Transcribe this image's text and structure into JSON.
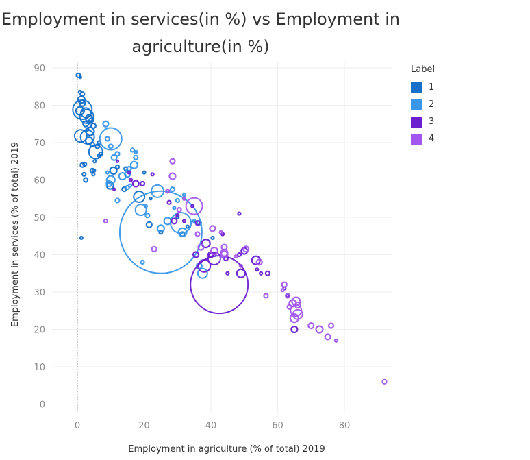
{
  "chart_data": {
    "type": "scatter",
    "title": "Employment in services(in %) vs Employment in agriculture(in %)",
    "xlabel": "Employment in agriculture (% of total) 2019",
    "ylabel": "Employment in services (% of total) 2019",
    "xlim": [
      -8,
      100
    ],
    "ylim": [
      -2,
      92
    ],
    "xticks": [
      0,
      20,
      40,
      60,
      80
    ],
    "yticks": [
      0,
      10,
      20,
      30,
      40,
      50,
      60,
      70,
      80,
      90
    ],
    "grid": true,
    "legend": {
      "title": "Label",
      "placement": "right"
    },
    "series": [
      {
        "name": "1",
        "color": "#1670c8",
        "points": [
          [
            0.3,
            88,
            3
          ],
          [
            0.9,
            87.5,
            1.5
          ],
          [
            0.8,
            83.5,
            2
          ],
          [
            1.5,
            83,
            3
          ],
          [
            1.2,
            81.5,
            5
          ],
          [
            1.5,
            80.5,
            4
          ],
          [
            1.5,
            78.8,
            14
          ],
          [
            0.8,
            78.5,
            6
          ],
          [
            2.5,
            78,
            7
          ],
          [
            2.8,
            77,
            10
          ],
          [
            3.5,
            76.5,
            5
          ],
          [
            4.2,
            76,
            3
          ],
          [
            2.5,
            75,
            4
          ],
          [
            3.5,
            75.5,
            2.5
          ],
          [
            4.8,
            74.5,
            3.5
          ],
          [
            3,
            73.5,
            2
          ],
          [
            3.8,
            73,
            6
          ],
          [
            1,
            71.8,
            9
          ],
          [
            3,
            71.5,
            10
          ],
          [
            3.5,
            70.5,
            5
          ],
          [
            4.5,
            69.5,
            3
          ],
          [
            6,
            69,
            3
          ],
          [
            6.5,
            70,
            2.5
          ],
          [
            5.5,
            67.5,
            10
          ],
          [
            6.5,
            66.5,
            2
          ],
          [
            7,
            67,
            2.5
          ],
          [
            5.2,
            65,
            2
          ],
          [
            1.5,
            64,
            3
          ],
          [
            2.2,
            64.2,
            2.5
          ],
          [
            4.5,
            62.5,
            3
          ],
          [
            5,
            62.5,
            2
          ],
          [
            4.8,
            61.5,
            2
          ],
          [
            2,
            61.5,
            2.5
          ],
          [
            2.5,
            60,
            3
          ],
          [
            9.8,
            58.5,
            5
          ],
          [
            10.8,
            62.5,
            5
          ],
          [
            12,
            63.5,
            2.5
          ],
          [
            14.5,
            63,
            2.5
          ],
          [
            14,
            57.5,
            3
          ],
          [
            18.5,
            55.5,
            8
          ],
          [
            20,
            62,
            2
          ],
          [
            22,
            55,
            1.5
          ],
          [
            21.5,
            48,
            4
          ],
          [
            25,
            46,
            2.5
          ],
          [
            30,
            50,
            2
          ],
          [
            31.5,
            45.5,
            3
          ],
          [
            33,
            47.5,
            2
          ],
          [
            40.5,
            44.5,
            2
          ],
          [
            1.2,
            44.5,
            2
          ]
        ]
      },
      {
        "name": "2",
        "color": "#3a96e8",
        "points": [
          [
            8.5,
            75,
            4
          ],
          [
            10,
            71,
            16
          ],
          [
            9,
            71,
            3
          ],
          [
            10,
            69,
            3
          ],
          [
            11,
            66,
            4
          ],
          [
            12,
            67,
            3
          ],
          [
            10,
            60,
            6
          ],
          [
            9.5,
            59,
            4
          ],
          [
            9,
            62,
            2
          ],
          [
            13.5,
            61,
            5
          ],
          [
            15,
            61.5,
            4
          ],
          [
            15.5,
            63,
            3
          ],
          [
            17,
            64,
            5
          ],
          [
            17.5,
            66,
            3
          ],
          [
            16.5,
            68,
            2.5
          ],
          [
            17.5,
            67.5,
            2
          ],
          [
            15.8,
            58.5,
            2
          ],
          [
            12,
            54.5,
            3
          ],
          [
            19,
            52,
            8
          ],
          [
            20.5,
            53,
            2
          ],
          [
            21,
            50.5,
            3
          ],
          [
            24,
            57,
            9
          ],
          [
            25,
            47,
            5
          ],
          [
            25,
            46,
            60
          ],
          [
            27,
            49,
            5
          ],
          [
            28.5,
            57.5,
            3
          ],
          [
            29,
            52.5,
            2
          ],
          [
            30,
            54.5,
            2.5
          ],
          [
            31,
            48.5,
            15
          ],
          [
            31.5,
            46,
            6
          ],
          [
            32,
            56,
            2
          ],
          [
            35,
            49,
            2
          ],
          [
            36.5,
            48.5,
            3
          ],
          [
            36.5,
            37,
            4
          ],
          [
            37.5,
            35,
            7
          ],
          [
            19.5,
            38,
            2.5
          ],
          [
            15,
            58,
            2.5
          ]
        ]
      },
      {
        "name": "3",
        "color": "#6a1fd0",
        "points": [
          [
            15.5,
            62,
            2
          ],
          [
            17.5,
            59,
            4.5
          ],
          [
            19.5,
            59,
            3
          ],
          [
            22.5,
            61.5,
            2
          ],
          [
            16,
            60,
            2
          ],
          [
            12,
            65,
            1.5
          ],
          [
            11,
            57.5,
            1.5
          ],
          [
            29,
            49,
            4
          ],
          [
            30,
            50.5,
            2
          ],
          [
            32,
            49,
            2
          ],
          [
            34.5,
            53,
            2
          ],
          [
            35.5,
            40,
            4
          ],
          [
            36,
            48.5,
            3
          ],
          [
            38,
            37,
            9
          ],
          [
            38.5,
            43,
            6
          ],
          [
            40,
            40,
            4
          ],
          [
            41,
            40,
            2.5
          ],
          [
            41,
            39,
            9
          ],
          [
            42.5,
            32,
            42
          ],
          [
            43.5,
            45.5,
            2
          ],
          [
            44.5,
            39,
            3
          ],
          [
            45,
            35,
            2
          ],
          [
            48.5,
            40,
            2.5
          ],
          [
            49,
            35,
            6
          ],
          [
            50,
            41,
            4.5
          ],
          [
            53.5,
            38.5,
            6
          ],
          [
            53.8,
            36,
            2
          ],
          [
            55,
            35,
            2
          ],
          [
            57,
            35,
            3
          ],
          [
            62,
            31,
            2
          ],
          [
            63,
            29,
            2
          ],
          [
            65,
            20,
            4.5
          ],
          [
            48.5,
            51,
            2
          ],
          [
            27.5,
            54,
            2.5
          ]
        ]
      },
      {
        "name": "4",
        "color": "#a258ee",
        "points": [
          [
            8.5,
            49,
            2.5
          ],
          [
            28.5,
            65,
            3.5
          ],
          [
            28.5,
            61,
            4.5
          ],
          [
            27,
            57,
            2.5
          ],
          [
            32,
            55,
            2
          ],
          [
            30.5,
            52,
            3
          ],
          [
            35,
            53,
            12
          ],
          [
            36,
            45.5,
            3
          ],
          [
            40.5,
            47,
            4
          ],
          [
            41,
            41,
            5
          ],
          [
            43,
            46,
            2
          ],
          [
            44,
            42,
            4
          ],
          [
            44,
            40.5,
            5
          ],
          [
            44,
            40,
            5
          ],
          [
            47.5,
            39.5,
            2
          ],
          [
            49,
            37,
            2
          ],
          [
            50.5,
            41.5,
            4
          ],
          [
            54.5,
            38,
            4
          ],
          [
            56.5,
            29,
            3
          ],
          [
            61.5,
            30.5,
            2
          ],
          [
            62,
            32,
            3.5
          ],
          [
            63,
            29,
            3
          ],
          [
            63.5,
            26,
            3
          ],
          [
            64.5,
            27,
            5
          ],
          [
            65,
            23,
            6
          ],
          [
            65.5,
            25,
            8
          ],
          [
            66,
            26.5,
            4
          ],
          [
            65.5,
            27.5,
            6
          ],
          [
            66,
            24,
            7
          ],
          [
            70,
            21,
            4
          ],
          [
            72.5,
            20,
            5
          ],
          [
            76,
            21,
            3.5
          ],
          [
            75,
            18,
            4
          ],
          [
            77.5,
            17,
            2
          ],
          [
            92,
            6,
            3
          ],
          [
            37,
            42,
            4
          ],
          [
            23,
            41.5,
            3.5
          ]
        ]
      }
    ]
  }
}
